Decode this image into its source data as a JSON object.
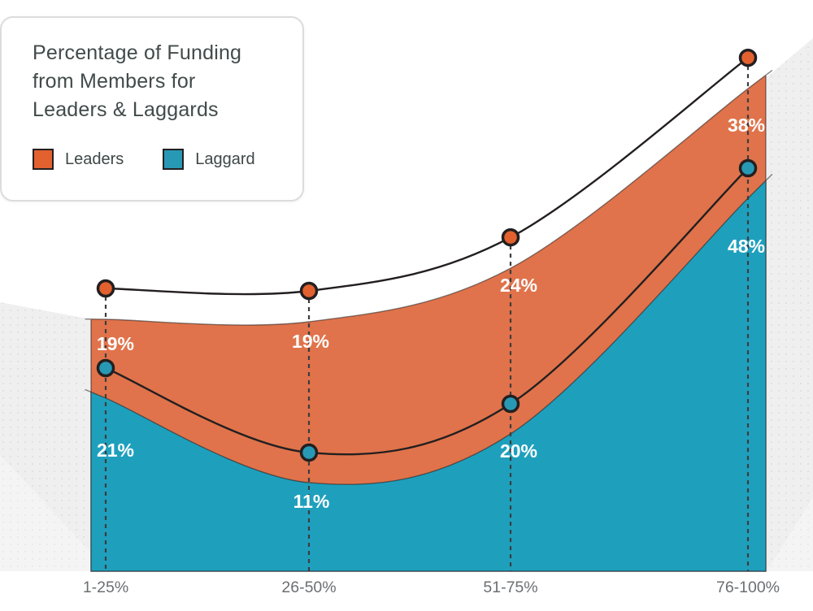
{
  "card": {
    "title_lines": [
      "Percentage of Funding",
      "from Members for",
      "Leaders & Laggards"
    ]
  },
  "chart_data": {
    "type": "area",
    "title": "Percentage of Funding from Members for Leaders & Laggards",
    "categories": [
      "1-25%",
      "26-50%",
      "51-75%",
      "76-100%"
    ],
    "series": [
      {
        "name": "Leaders",
        "values": [
          19,
          19,
          24,
          38
        ],
        "marker_color": "#e2612f",
        "fill_color": "#e0734b"
      },
      {
        "name": "Laggard",
        "values": [
          21,
          11,
          20,
          48
        ],
        "marker_color": "#2899b5",
        "fill_color": "#1ea0bd"
      }
    ],
    "value_suffix": "%",
    "xlabel": "",
    "ylabel": "",
    "grid": false,
    "legend_position": "top-left-card",
    "line_color": "#231f20",
    "dash_color": "#3c3c3c",
    "label_text_color": "#ffffff",
    "axis_text_color": "#6c6f72",
    "background_white": "#ffffff",
    "background_gray": "#f0eff0",
    "card_border_color": "#dcdcdc",
    "title_text_color": "#414b4a"
  }
}
